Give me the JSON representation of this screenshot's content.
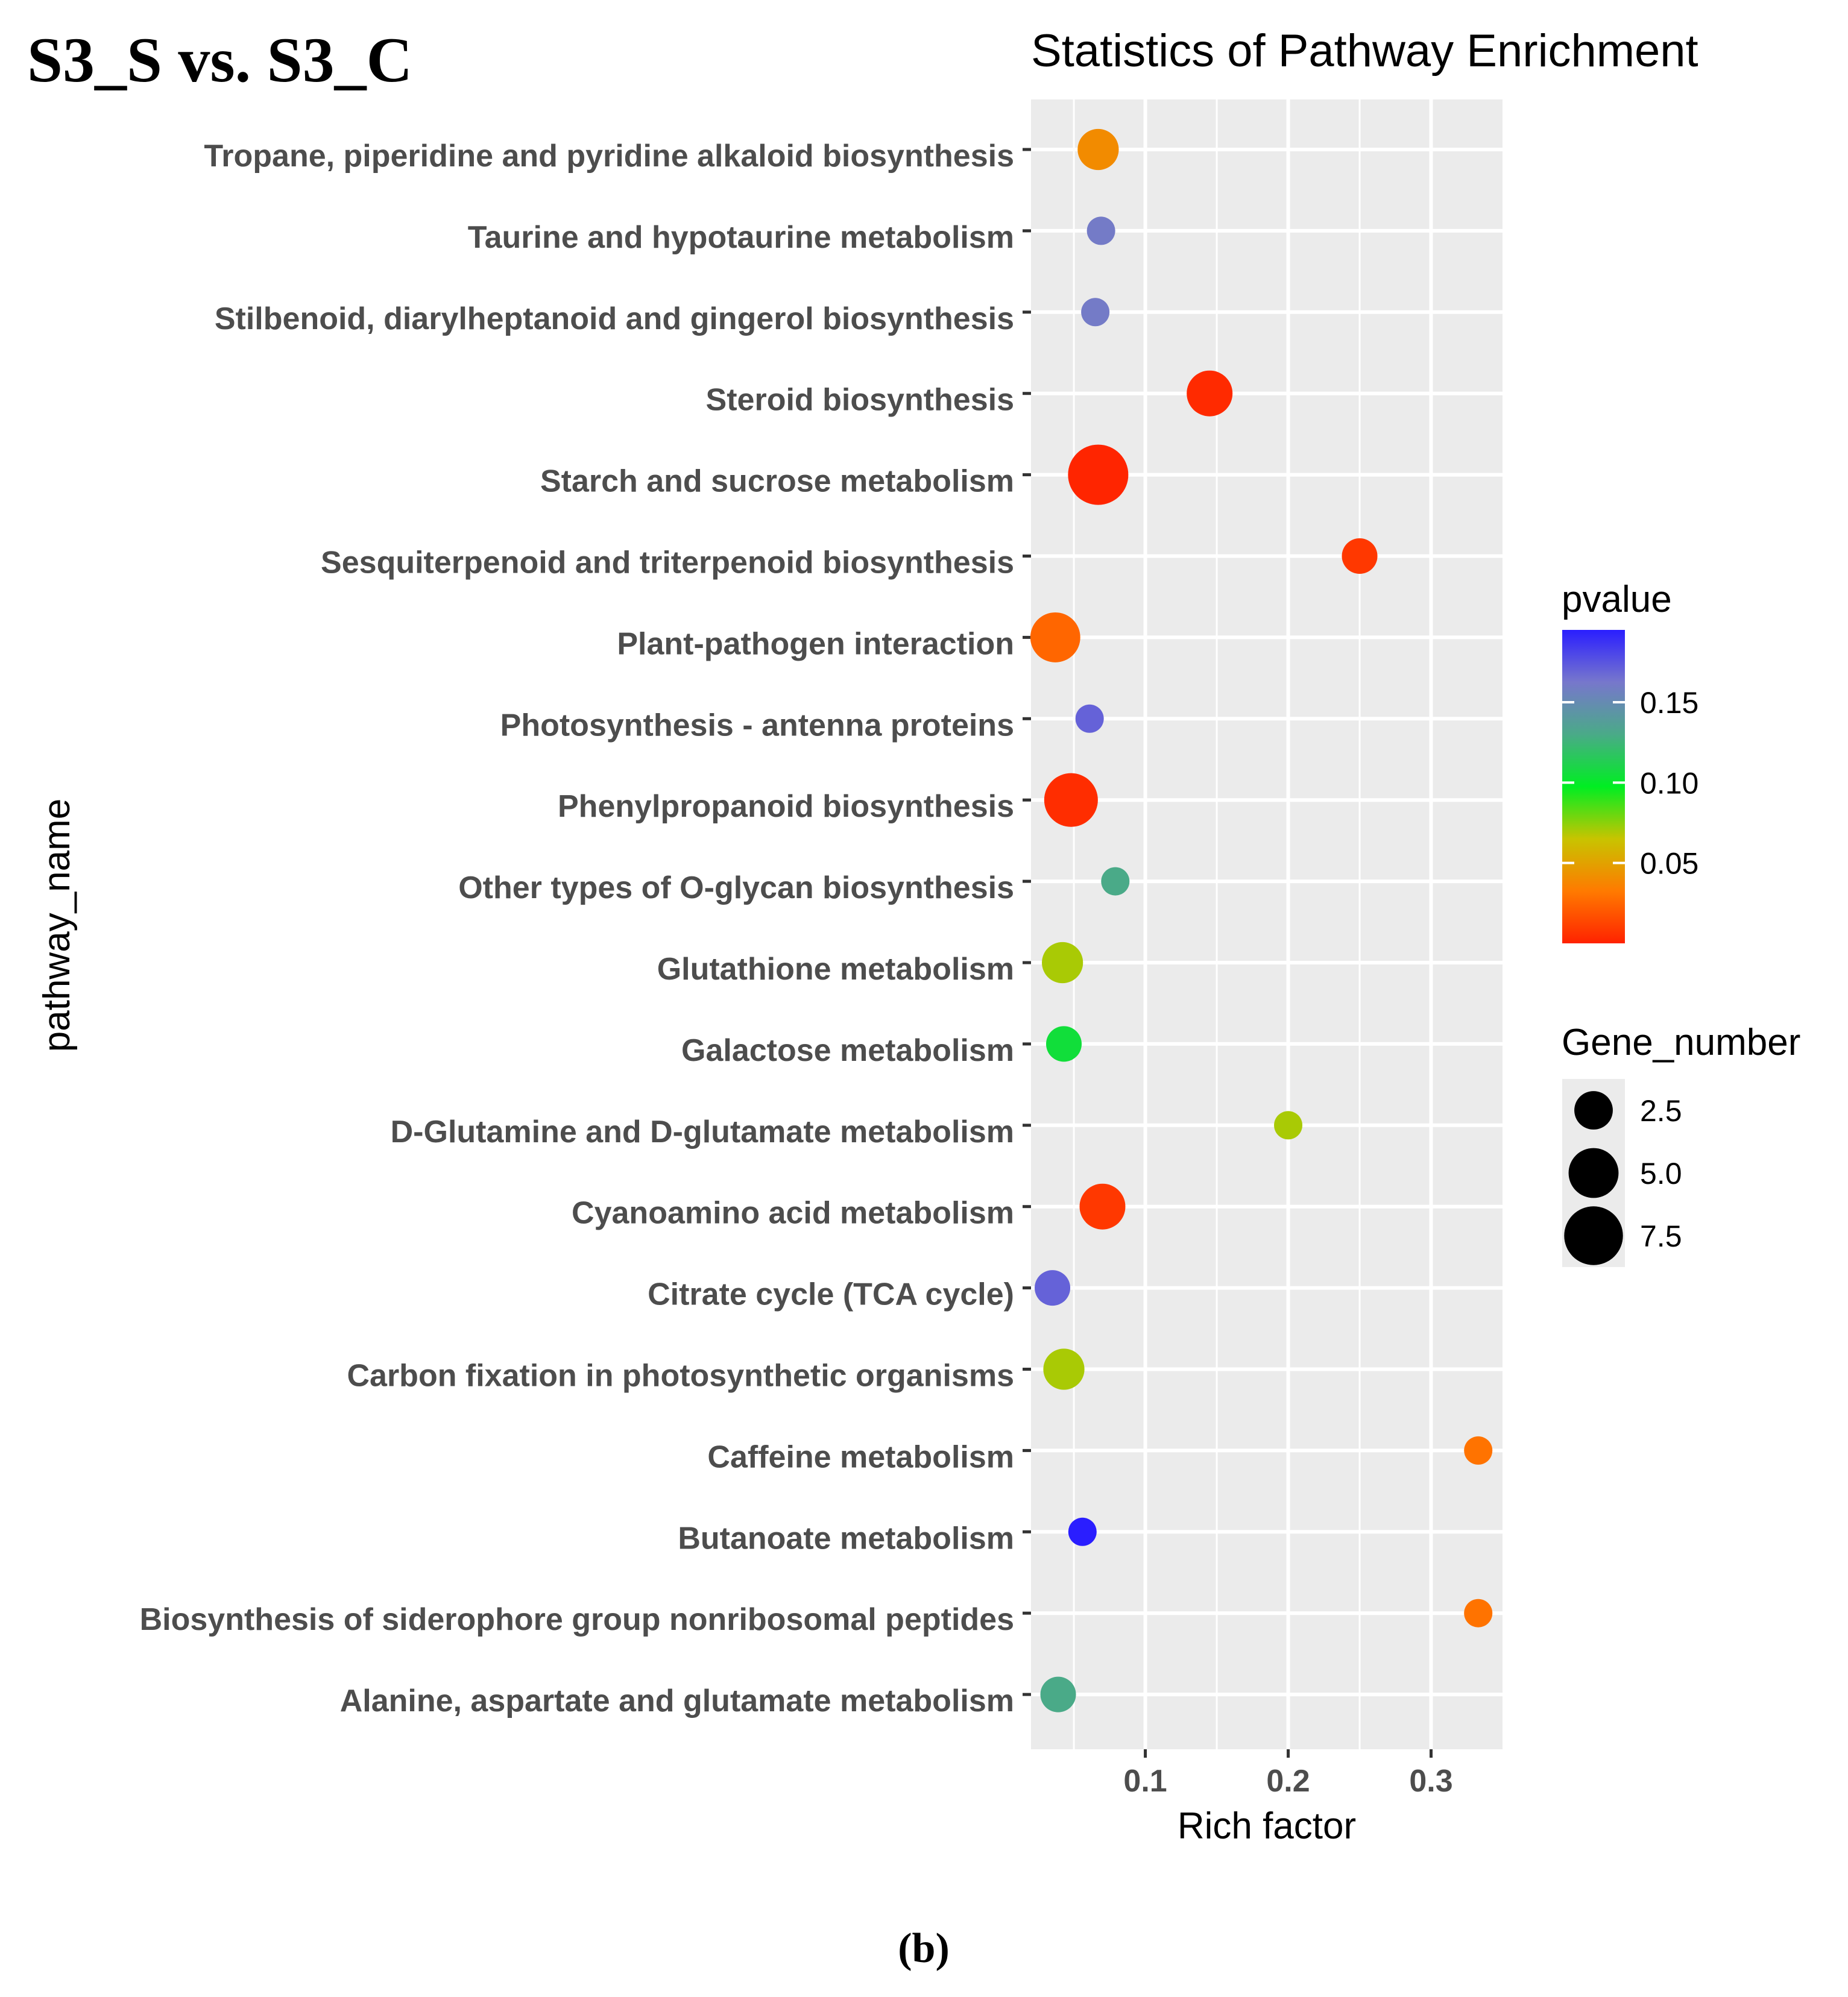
{
  "figure_label": "S3_S vs. S3_C",
  "panel_label": "(b)",
  "chart_data": {
    "type": "scatter",
    "title": "Statistics of Pathway Enrichment",
    "xlabel": "Rich factor",
    "ylabel": "pathway_name",
    "xlim": [
      0.02,
      0.35
    ],
    "xticks": [
      0.1,
      0.2,
      0.3
    ],
    "xtick_labels": [
      "0.1",
      "0.2",
      "0.3"
    ],
    "grid": true,
    "legend_position": "right",
    "color_legend": {
      "title": "pvalue",
      "range": [
        0.0,
        0.195
      ],
      "ticks": [
        0.05,
        0.1,
        0.15
      ],
      "tick_labels": [
        "0.05",
        "0.10",
        "0.15"
      ],
      "colors": [
        "#ff2200",
        "#ff7a00",
        "#c8c400",
        "#00ee22",
        "#4aaa88",
        "#7777cc",
        "#2a1eff"
      ]
    },
    "size_legend": {
      "title": "Gene_number",
      "values": [
        2.5,
        5.0,
        7.5
      ],
      "labels": [
        "2.5",
        "5.0",
        "7.5"
      ]
    },
    "pathways": [
      "Tropane, piperidine and pyridine alkaloid biosynthesis",
      "Taurine and hypotaurine metabolism",
      "Stilbenoid, diarylheptanoid and gingerol biosynthesis",
      "Steroid biosynthesis",
      "Starch and sucrose metabolism",
      "Sesquiterpenoid and triterpenoid biosynthesis",
      "Plant-pathogen interaction",
      "Photosynthesis - antenna proteins",
      "Phenylpropanoid biosynthesis",
      "Other types of O-glycan biosynthesis",
      "Glutathione metabolism",
      "Galactose metabolism",
      "D-Glutamine and D-glutamate metabolism",
      "Cyanoamino acid metabolism",
      "Citrate cycle (TCA cycle)",
      "Carbon fixation in photosynthetic organisms",
      "Caffeine metabolism",
      "Butanoate metabolism",
      "Biosynthesis of siderophore group nonribosomal peptides",
      "Alanine, aspartate and glutamate metabolism"
    ],
    "points": [
      {
        "pathway": "Tropane, piperidine and pyridine alkaloid biosynthesis",
        "rich_factor": 0.067,
        "gene_number": 3,
        "pvalue": 0.04
      },
      {
        "pathway": "Taurine and hypotaurine metabolism",
        "rich_factor": 0.069,
        "gene_number": 1,
        "pvalue": 0.16
      },
      {
        "pathway": "Stilbenoid, diarylheptanoid and gingerol biosynthesis",
        "rich_factor": 0.065,
        "gene_number": 1,
        "pvalue": 0.16
      },
      {
        "pathway": "Steroid biosynthesis",
        "rich_factor": 0.145,
        "gene_number": 4,
        "pvalue": 0.003
      },
      {
        "pathway": "Starch and sucrose metabolism",
        "rich_factor": 0.067,
        "gene_number": 8,
        "pvalue": 0.001
      },
      {
        "pathway": "Sesquiterpenoid and triterpenoid biosynthesis",
        "rich_factor": 0.25,
        "gene_number": 2,
        "pvalue": 0.008
      },
      {
        "pathway": "Plant-pathogen interaction",
        "rich_factor": 0.037,
        "gene_number": 5,
        "pvalue": 0.025
      },
      {
        "pathway": "Photosynthesis - antenna proteins",
        "rich_factor": 0.061,
        "gene_number": 1,
        "pvalue": 0.17
      },
      {
        "pathway": "Phenylpropanoid biosynthesis",
        "rich_factor": 0.048,
        "gene_number": 6,
        "pvalue": 0.004
      },
      {
        "pathway": "Other types of O-glycan biosynthesis",
        "rich_factor": 0.079,
        "gene_number": 1,
        "pvalue": 0.13
      },
      {
        "pathway": "Glutathione metabolism",
        "rich_factor": 0.042,
        "gene_number": 3,
        "pvalue": 0.07
      },
      {
        "pathway": "Galactose metabolism",
        "rich_factor": 0.043,
        "gene_number": 2,
        "pvalue": 0.105
      },
      {
        "pathway": "D-Glutamine and D-glutamate metabolism",
        "rich_factor": 0.2,
        "gene_number": 1,
        "pvalue": 0.07
      },
      {
        "pathway": "Cyanoamino acid metabolism",
        "rich_factor": 0.07,
        "gene_number": 4,
        "pvalue": 0.008
      },
      {
        "pathway": "Citrate cycle (TCA cycle)",
        "rich_factor": 0.035,
        "gene_number": 2,
        "pvalue": 0.17
      },
      {
        "pathway": "Carbon fixation in photosynthetic organisms",
        "rich_factor": 0.043,
        "gene_number": 3,
        "pvalue": 0.07
      },
      {
        "pathway": "Caffeine metabolism",
        "rich_factor": 0.333,
        "gene_number": 1,
        "pvalue": 0.03
      },
      {
        "pathway": "Butanoate metabolism",
        "rich_factor": 0.056,
        "gene_number": 1,
        "pvalue": 0.195
      },
      {
        "pathway": "Biosynthesis of siderophore group nonribosomal peptides",
        "rich_factor": 0.333,
        "gene_number": 1,
        "pvalue": 0.03
      },
      {
        "pathway": "Alanine, aspartate and glutamate metabolism",
        "rich_factor": 0.039,
        "gene_number": 2,
        "pvalue": 0.13
      }
    ]
  }
}
